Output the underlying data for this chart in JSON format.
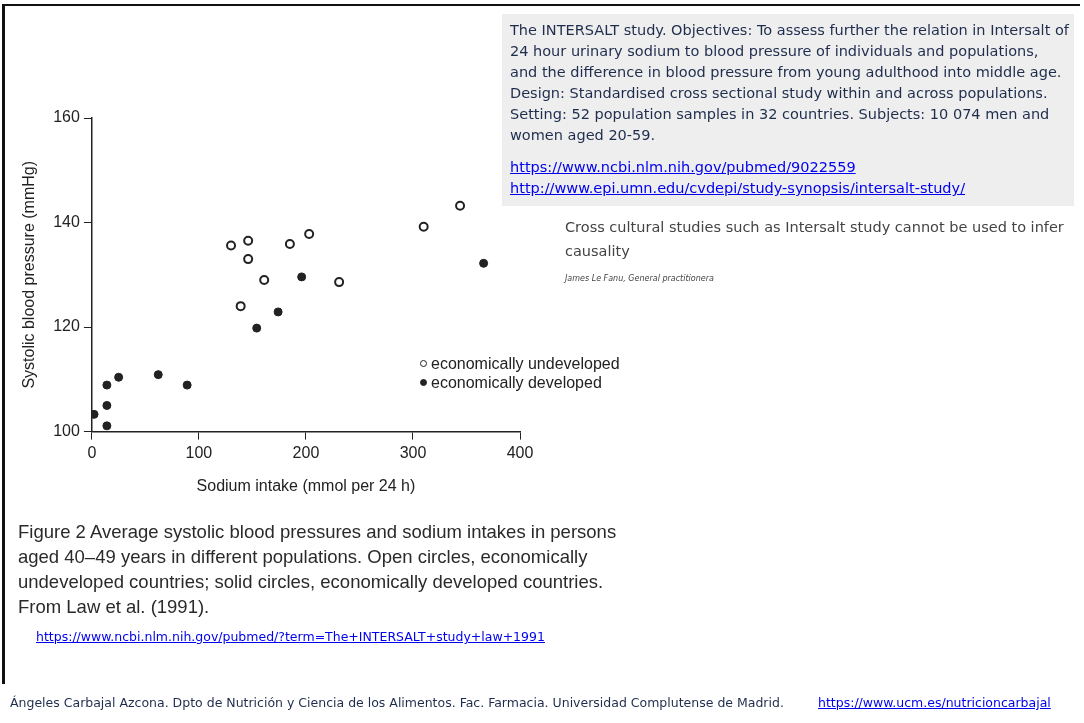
{
  "chart_data": {
    "type": "scatter",
    "xlabel": "Sodium intake (mmol per 24 h)",
    "ylabel": "Systolic blood pressure (mmHg)",
    "xlim": [
      0,
      400
    ],
    "xticks": [
      0,
      100,
      200,
      300,
      400
    ],
    "ylim": [
      100,
      160
    ],
    "yticks": [
      100,
      120,
      140,
      160
    ],
    "grid": false,
    "legend": "lower right",
    "marker": "circle",
    "series": [
      {
        "name": "economically undeveloped",
        "color": "#222222",
        "x": [
          130,
          146,
          146,
          185,
          203,
          161,
          231,
          139,
          310,
          344
        ],
        "values": [
          135.6,
          136.5,
          133,
          135.9,
          137.8,
          129,
          128.6,
          124,
          139.2,
          143.2
        ]
      },
      {
        "name": "economically developed",
        "color": "#222222",
        "x": [
          196,
          174,
          154,
          366,
          25,
          62,
          89,
          14,
          14,
          2,
          14
        ],
        "values": [
          129.6,
          122.9,
          119.8,
          132.2,
          110.4,
          110.9,
          108.9,
          108.9,
          105,
          103.3,
          101.1
        ]
      }
    ],
    "annotations": [
      "The INTERSALT study. Objectives: To assess further the relation in Intersalt of 24 hour urinary sodium to blood pressure of individuals and populations, and the difference in blood pressure from young adulthood into middle age. Design: Standardised cross sectional study within and across populations. Setting: 52 population samples in 32 countries. Subjects: 10 074 men and women aged 20-59.",
      "https://www.ncbi.nlm.nih.gov/pubmed/9022559",
      "http://www.epi.umn.edu/cvdepi/study-synopsis/intersalt-study/",
      "Cross cultural studies such as Intersalt study cannot be used to infer causality",
      "James Le Fanu, General practitionera",
      "Figure 2   Average systolic blood pressures and sodium intakes in persons aged 40–49 years in different populations. Open circles, economically undeveloped countries; solid circles, economically developed countries. From Law et al. (1991).",
      "https://www.ncbi.nlm.nih.gov/pubmed/?term=The+INTERSALT+study+law+1991",
      "Ángeles Carbajal Azcona. Dpto de Nutrición y Ciencia de los Alimentos. Fac. Farmacia. Universidad Complutense de Madrid.",
      "https://www.ucm.es/nutricioncarbajal"
    ]
  }
}
